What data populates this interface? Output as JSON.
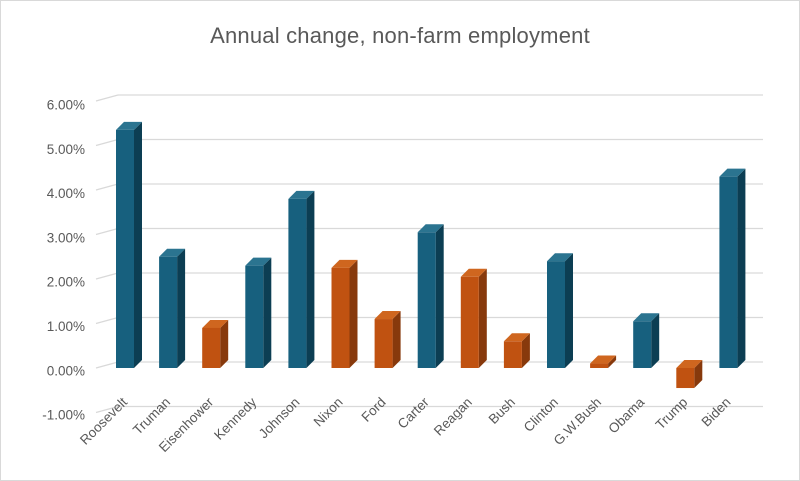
{
  "window": {
    "background": "#FFFFFF",
    "border_color": "#D9D9D9"
  },
  "chart_data": {
    "type": "bar",
    "effect": "3d-column",
    "title": "Annual change, non-farm employment",
    "xlabel": "",
    "ylabel": "",
    "ylim": [
      -1,
      6
    ],
    "grid": true,
    "legend": "none",
    "yticks": [
      {
        "label": "6.00%",
        "value": 6
      },
      {
        "label": "5.00%",
        "value": 5
      },
      {
        "label": "4.00%",
        "value": 4
      },
      {
        "label": "3.00%",
        "value": 3
      },
      {
        "label": "2.00%",
        "value": 2
      },
      {
        "label": "1.00%",
        "value": 1
      },
      {
        "label": "0.00%",
        "value": 0
      },
      {
        "label": "-1.00%",
        "value": -1
      }
    ],
    "categories": [
      "Roosevelt",
      "Truman",
      "Eisenhower",
      "Kennedy",
      "Johnson",
      "Nixon",
      "Ford",
      "Carter",
      "Reagan",
      "Bush",
      "Clinton",
      "G.W.Bush",
      "Obama",
      "Trump",
      "Biden"
    ],
    "values": [
      5.35,
      2.5,
      0.9,
      2.3,
      3.8,
      2.25,
      1.1,
      3.05,
      2.05,
      0.6,
      2.4,
      0.1,
      1.05,
      -0.45,
      4.3
    ],
    "bar_color_keys": [
      "blue",
      "blue",
      "orange",
      "blue",
      "blue",
      "orange",
      "orange",
      "blue",
      "orange",
      "orange",
      "blue",
      "orange",
      "blue",
      "orange",
      "blue"
    ],
    "palette": {
      "blue": {
        "front": "#17607E",
        "top": "#2B7490",
        "side": "#0C3E53"
      },
      "orange": {
        "front": "#C05211",
        "top": "#CF661F",
        "side": "#87390C"
      }
    },
    "title_color": "#595959",
    "axis_text_color": "#595959",
    "gridline_color": "#D9D9D9"
  }
}
